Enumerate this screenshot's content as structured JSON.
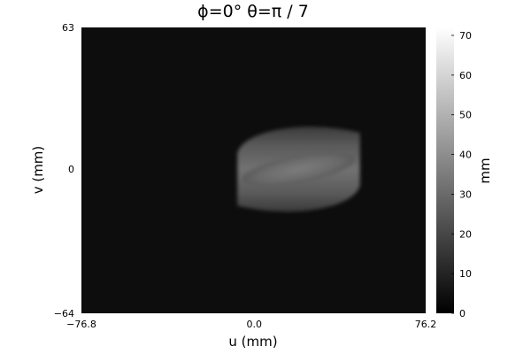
{
  "chart_data": {
    "type": "heatmap",
    "title": "ϕ=0° θ=π / 7",
    "xlabel": "u (mm)",
    "ylabel": "v (mm)",
    "xlim": [
      -76.8,
      76.2
    ],
    "ylim": [
      -64,
      63
    ],
    "x_ticks": [
      "−76.8",
      "0.0",
      "76.2"
    ],
    "y_ticks": [
      "−64",
      "0",
      "63"
    ],
    "colorbar": {
      "label": "mm",
      "range": [
        0,
        72
      ],
      "ticks": [
        "0",
        "10",
        "20",
        "30",
        "40",
        "50",
        "60",
        "70"
      ],
      "colormap": "grays",
      "low_color": "#0d0d0d",
      "high_color": "#ffffff"
    },
    "background_value": 0,
    "object": {
      "shape": "projected cylinder (ellipsoidal)",
      "u_range": [
        -7.5,
        47
      ],
      "v_range": [
        -18,
        18
      ],
      "center_ellipse_value": 32,
      "edge_value": 25
    },
    "grid": false
  },
  "colors": {
    "background": "#0d0d0d",
    "object_core": "#6f6f6f",
    "object_edge": "#545454"
  }
}
